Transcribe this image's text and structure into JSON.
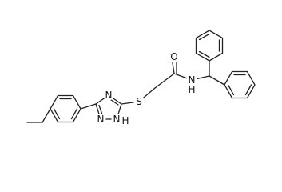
{
  "atoms": [
    "O",
    "N",
    "H",
    "S",
    "N",
    "N",
    "N",
    "H"
  ]
}
